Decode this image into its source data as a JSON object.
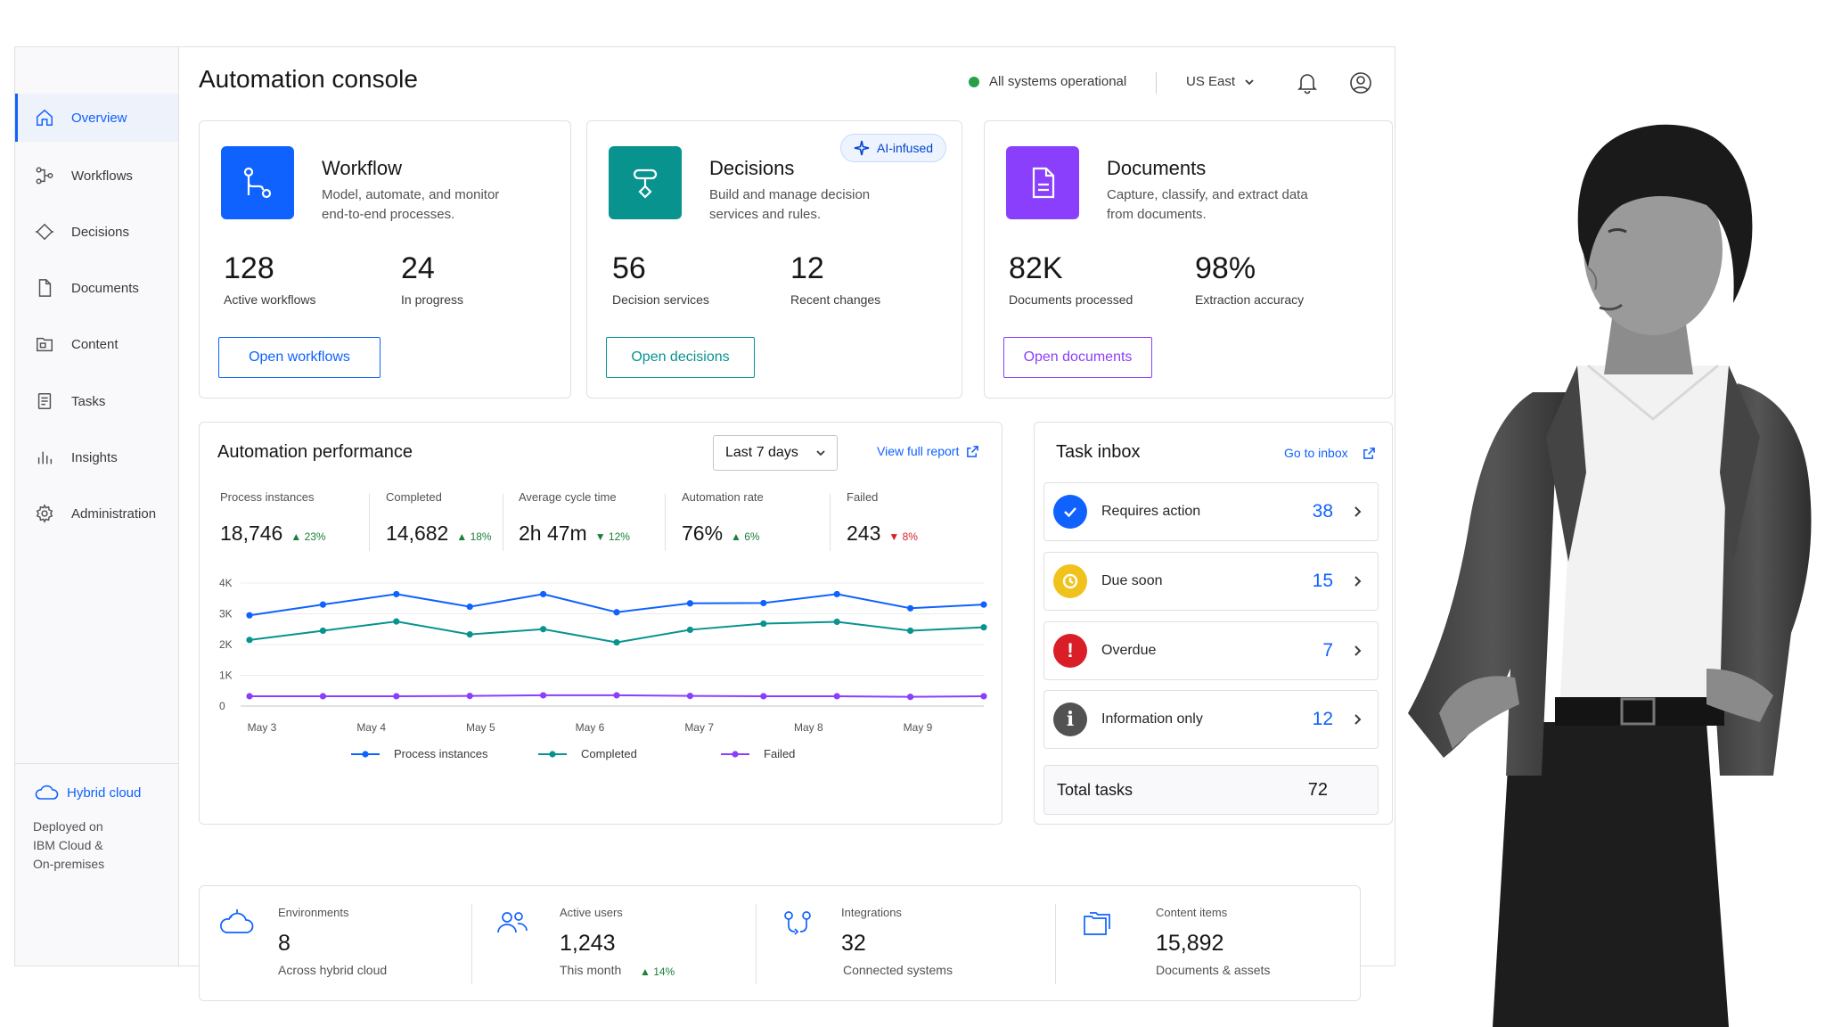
{
  "header": {
    "title": "Automation console",
    "status": "All systems operational",
    "region": "US East",
    "notifications_icon": "bell-icon",
    "profile_icon": "user-icon"
  },
  "sidebar": {
    "items": [
      {
        "label": "Overview",
        "icon": "home-icon",
        "active": true
      },
      {
        "label": "Workflows",
        "icon": "workflow-icon"
      },
      {
        "label": "Decisions",
        "icon": "diamond-icon"
      },
      {
        "label": "Documents",
        "icon": "document-icon"
      },
      {
        "label": "Content",
        "icon": "folder-icon"
      },
      {
        "label": "Tasks",
        "icon": "task-list-icon"
      },
      {
        "label": "Insights",
        "icon": "bar-chart-icon"
      },
      {
        "label": "Administration",
        "icon": "gear-icon"
      }
    ],
    "footer": {
      "title": "Hybrid cloud",
      "text": "Deployed on\nIBM Cloud &\nOn-premises"
    }
  },
  "products": [
    {
      "title": "Workflow",
      "desc": "Model, automate, and monitor end-to-end processes.",
      "color": "#0f62fe",
      "m1_value": "128",
      "m1_label": "Active workflows",
      "m2_value": "24",
      "m2_label": "In progress",
      "button": "Open workflows"
    },
    {
      "title": "Decisions",
      "desc": "Build and manage decision services and rules.",
      "color": "#08938f",
      "badge": "AI-infused",
      "m1_value": "56",
      "m1_label": "Decision services",
      "m2_value": "12",
      "m2_label": "Recent changes",
      "button": "Open decisions"
    },
    {
      "title": "Documents",
      "desc": "Capture, classify, and extract data from documents.",
      "color": "#8a3ffc",
      "m1_value": "82K",
      "m1_label": "Documents processed",
      "m2_value": "98%",
      "m2_label": "Extraction accuracy",
      "button": "Open documents"
    }
  ],
  "performance": {
    "title": "Automation performance",
    "range": "Last 7 days",
    "report_link": "View full report",
    "kpis": [
      {
        "label": "Process instances",
        "value": "18,746",
        "delta": "▲ 23%",
        "dir": "up"
      },
      {
        "label": "Completed",
        "value": "14,682",
        "delta": "▲ 18%",
        "dir": "up"
      },
      {
        "label": "Average cycle time",
        "value": "2h 47m",
        "delta": "▼ 12%",
        "dir": "up"
      },
      {
        "label": "Automation rate",
        "value": "76%",
        "delta": "▲ 6%",
        "dir": "up"
      },
      {
        "label": "Failed",
        "value": "243",
        "delta": "▼ 8%",
        "dir": "down"
      }
    ]
  },
  "chart_data": {
    "type": "line",
    "x": [
      0,
      1,
      2,
      3,
      4,
      5,
      6,
      7,
      8,
      9,
      10
    ],
    "x_tick_labels": [
      "May 3",
      "May 4",
      "May 5",
      "May 6",
      "May 7",
      "May 8",
      "May 9"
    ],
    "y_tick_labels": [
      "4K",
      "3K",
      "2K",
      "1K",
      "0"
    ],
    "ylim": [
      0,
      4000
    ],
    "grid": true,
    "legend_position": "bottom",
    "series": [
      {
        "name": "Process instances",
        "color": "#0f62fe",
        "values": [
          2950,
          3300,
          3640,
          3230,
          3640,
          3050,
          3340,
          3350,
          3640,
          3180,
          3300
        ]
      },
      {
        "name": "Completed",
        "color": "#08938f",
        "values": [
          2150,
          2450,
          2750,
          2330,
          2500,
          2070,
          2480,
          2680,
          2740,
          2450,
          2560
        ]
      },
      {
        "name": "Failed",
        "color": "#8a3ffc",
        "values": [
          320,
          320,
          320,
          330,
          350,
          350,
          330,
          320,
          320,
          300,
          320
        ]
      }
    ]
  },
  "inbox": {
    "title": "Task inbox",
    "link": "Go to inbox",
    "tasks": [
      {
        "label": "Requires action",
        "count": "38",
        "color": "#0f62fe",
        "icon": "check-icon"
      },
      {
        "label": "Due soon",
        "count": "15",
        "color": "#f1c21b",
        "icon": "clock-icon"
      },
      {
        "label": "Overdue",
        "count": "7",
        "color": "#da1e28",
        "icon": "exclamation-icon"
      },
      {
        "label": "Information only",
        "count": "12",
        "color": "#525252",
        "icon": "info-icon"
      }
    ],
    "total_label": "Total tasks",
    "total_value": "72"
  },
  "stats": [
    {
      "icon": "cloud-icon",
      "label": "Environments",
      "value": "8",
      "sub": "Across hybrid cloud"
    },
    {
      "icon": "users-icon",
      "label": "Active users",
      "value": "1,243",
      "sub": "This month",
      "delta": "▲ 14%"
    },
    {
      "icon": "integration-icon",
      "label": "Integrations",
      "value": "32",
      "sub": "Connected systems"
    },
    {
      "icon": "folders-icon",
      "label": "Content items",
      "value": "15,892",
      "sub": "Documents & assets"
    }
  ]
}
